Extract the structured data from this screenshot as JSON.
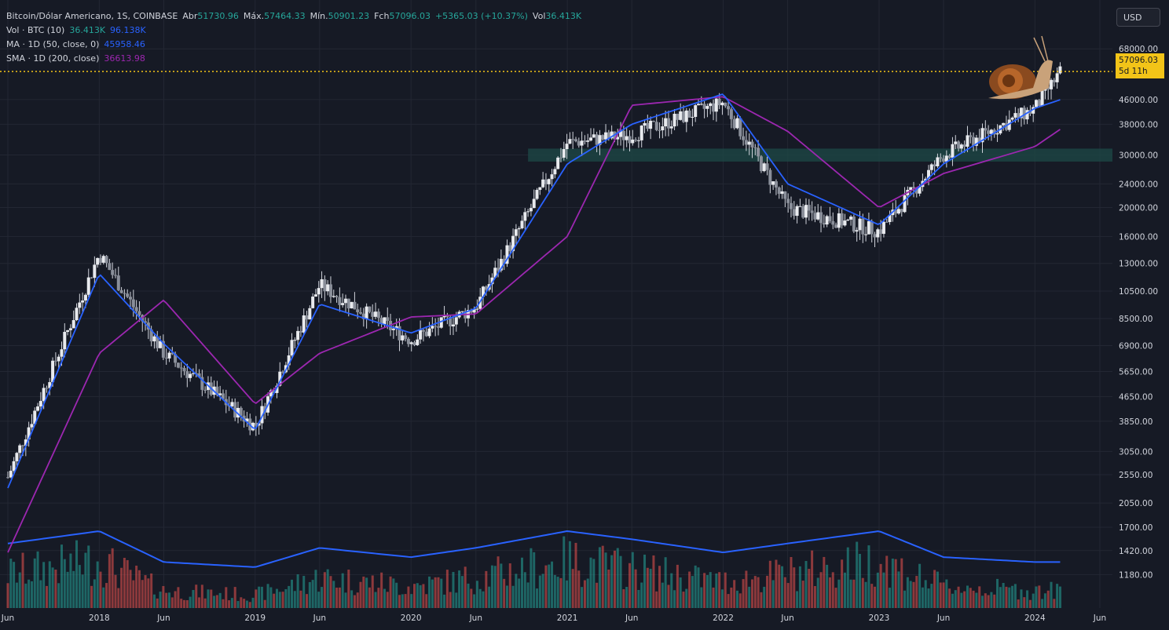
{
  "symbol": {
    "name": "Bitcoin/Dólar Americano, 1S, COINBASE",
    "open_label": "Abr",
    "open": "51730.96",
    "high_label": "Máx.",
    "high": "57464.33",
    "low_label": "Mín.",
    "low": "50901.23",
    "close_label": "Fch",
    "close": "57096.03",
    "change": "+5365.03 (+10.37%)",
    "vol_label": "Vol",
    "vol": "36.413K"
  },
  "indicators": [
    {
      "label": "Vol · BTC (10)",
      "v1": "36.413K",
      "v2": "96.138K"
    },
    {
      "label": "MA · 1D (50, close, 0)",
      "v1": "45958.46"
    },
    {
      "label": "SMA · 1D (200, close)",
      "v1": "36613.98"
    }
  ],
  "currency_button": "USD",
  "price_badge": {
    "price": "57096.03",
    "countdown": "5d 11h"
  },
  "colors": {
    "background": "#161a25",
    "up": "#26a69a",
    "down": "#ef5350",
    "candle": "#d1d4dc",
    "ma50": "#2962ff",
    "sma200": "#9c27b0",
    "price_line": "#f2c418",
    "zone": "#1d4a47"
  },
  "chart_data": {
    "type": "candlestick",
    "scale": "log",
    "ylim": [
      1100,
      75000
    ],
    "y_ticks": [
      "68000.00",
      "46000.00",
      "38000.00",
      "30000.00",
      "24000.00",
      "20000.00",
      "16000.00",
      "13000.00",
      "10500.00",
      "8500.00",
      "6900.00",
      "5650.00",
      "4650.00",
      "3850.00",
      "3050.00",
      "2550.00",
      "2050.00",
      "1700.00",
      "1420.00",
      "1180.00"
    ],
    "x_ticks": [
      "Jun",
      "2018",
      "Jun",
      "2019",
      "Jun",
      "2020",
      "Jun",
      "2021",
      "Jun",
      "2022",
      "Jun",
      "2023",
      "Jun",
      "2024",
      "Jun"
    ],
    "x": [
      "2017-06",
      "2018-01",
      "2018-06",
      "2019-01",
      "2019-06",
      "2020-01",
      "2020-06",
      "2021-01",
      "2021-06",
      "2022-01",
      "2022-06",
      "2023-01",
      "2023-06",
      "2024-01",
      "2024-03"
    ],
    "series": [
      {
        "name": "BTC",
        "values": [
          2500,
          14000,
          6500,
          3700,
          11000,
          7200,
          9300,
          33000,
          35000,
          45000,
          20000,
          16700,
          30000,
          43000,
          57096.03
        ]
      },
      {
        "name": "MA · 1D (50, close, 0)",
        "values": [
          2300,
          12000,
          7000,
          3600,
          9500,
          7600,
          9200,
          28000,
          38000,
          48000,
          24000,
          17500,
          28000,
          43000,
          45958.46
        ]
      },
      {
        "name": "SMA · 1D (200, close)",
        "values": [
          1400,
          6500,
          9800,
          4400,
          6500,
          8600,
          8800,
          16000,
          44000,
          47000,
          36000,
          20000,
          26000,
          32000,
          36613.98
        ]
      },
      {
        "name": "Vol · BTC (10)",
        "values": [
          1500,
          1650,
          1300,
          1250,
          1450,
          1350,
          1450,
          1650,
          1550,
          1400,
          1500,
          1650,
          1350,
          1300,
          1300
        ]
      }
    ],
    "horizontal_zone": [
      28500,
      31500
    ],
    "price_line": 57096.03
  }
}
